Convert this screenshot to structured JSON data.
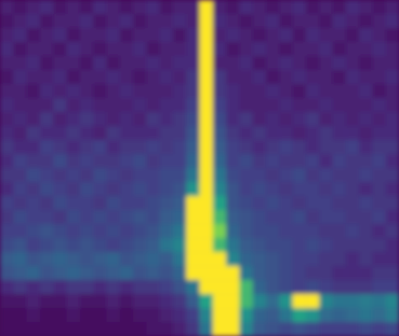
{
  "chart_data": {
    "type": "heatmap",
    "tick_labels": false,
    "zlim": [
      0,
      25
    ],
    "cells": [
      [
        3,
        2,
        3,
        4,
        2,
        3,
        2,
        4,
        3,
        2,
        3,
        4,
        2,
        3,
        3,
        25,
        3,
        2,
        4,
        3,
        2,
        3,
        4,
        2,
        3,
        2,
        4,
        3,
        2,
        3
      ],
      [
        2,
        3,
        4,
        2,
        3,
        3,
        4,
        2,
        3,
        4,
        2,
        3,
        3,
        4,
        3,
        25,
        4,
        3,
        2,
        3,
        4,
        2,
        3,
        3,
        2,
        4,
        3,
        2,
        3,
        4
      ],
      [
        3,
        4,
        2,
        3,
        4,
        2,
        3,
        3,
        4,
        2,
        3,
        3,
        4,
        2,
        4,
        25,
        3,
        4,
        3,
        2,
        3,
        4,
        2,
        4,
        3,
        3,
        2,
        4,
        3,
        2
      ],
      [
        4,
        2,
        3,
        3,
        2,
        4,
        3,
        2,
        3,
        3,
        4,
        2,
        3,
        3,
        4,
        25,
        4,
        2,
        3,
        4,
        3,
        2,
        3,
        3,
        4,
        2,
        3,
        3,
        4,
        3
      ],
      [
        3,
        3,
        4,
        2,
        3,
        3,
        2,
        4,
        2,
        3,
        3,
        4,
        3,
        4,
        4,
        25,
        3,
        3,
        4,
        2,
        3,
        4,
        3,
        2,
        3,
        4,
        3,
        2,
        3,
        3
      ],
      [
        2,
        4,
        3,
        3,
        4,
        2,
        3,
        3,
        4,
        3,
        2,
        3,
        4,
        3,
        5,
        25,
        5,
        3,
        3,
        4,
        2,
        3,
        4,
        3,
        3,
        2,
        4,
        3,
        3,
        4
      ],
      [
        3,
        3,
        2,
        4,
        3,
        4,
        3,
        2,
        3,
        4,
        3,
        3,
        3,
        4,
        5,
        25,
        5,
        4,
        3,
        3,
        4,
        3,
        2,
        4,
        3,
        3,
        3,
        4,
        2,
        3
      ],
      [
        4,
        3,
        3,
        3,
        5,
        3,
        4,
        3,
        3,
        3,
        4,
        3,
        4,
        4,
        6,
        25,
        6,
        4,
        3,
        3,
        3,
        4,
        3,
        3,
        4,
        3,
        3,
        3,
        4,
        3
      ],
      [
        3,
        4,
        3,
        5,
        3,
        4,
        5,
        4,
        3,
        4,
        3,
        5,
        4,
        5,
        7,
        25,
        7,
        4,
        5,
        3,
        4,
        3,
        4,
        5,
        3,
        4,
        3,
        4,
        3,
        4
      ],
      [
        4,
        3,
        5,
        4,
        4,
        5,
        4,
        3,
        5,
        4,
        4,
        4,
        5,
        5,
        8,
        25,
        8,
        5,
        4,
        5,
        4,
        4,
        3,
        4,
        5,
        4,
        4,
        3,
        4,
        4
      ],
      [
        5,
        4,
        4,
        6,
        5,
        4,
        5,
        6,
        4,
        5,
        5,
        6,
        5,
        6,
        9,
        25,
        9,
        6,
        5,
        4,
        5,
        6,
        5,
        4,
        5,
        5,
        6,
        4,
        5,
        5
      ],
      [
        4,
        6,
        5,
        5,
        7,
        5,
        6,
        5,
        5,
        6,
        7,
        5,
        6,
        6,
        10,
        25,
        10,
        6,
        7,
        5,
        6,
        5,
        5,
        6,
        4,
        6,
        5,
        5,
        6,
        4
      ],
      [
        5,
        5,
        7,
        6,
        5,
        6,
        5,
        7,
        6,
        5,
        6,
        6,
        7,
        7,
        12,
        25,
        12,
        7,
        6,
        6,
        5,
        6,
        7,
        5,
        6,
        5,
        5,
        6,
        5,
        5
      ],
      [
        4,
        6,
        5,
        7,
        6,
        5,
        7,
        6,
        5,
        6,
        7,
        6,
        7,
        8,
        16,
        25,
        14,
        8,
        6,
        7,
        6,
        5,
        6,
        6,
        5,
        6,
        5,
        4,
        5,
        4
      ],
      [
        6,
        5,
        6,
        5,
        7,
        6,
        6,
        5,
        7,
        6,
        6,
        7,
        8,
        9,
        25,
        25,
        18,
        8,
        7,
        6,
        7,
        6,
        5,
        6,
        6,
        5,
        5,
        6,
        5,
        5
      ],
      [
        5,
        7,
        6,
        6,
        5,
        7,
        6,
        7,
        6,
        7,
        8,
        7,
        9,
        10,
        25,
        25,
        20,
        9,
        8,
        7,
        6,
        6,
        7,
        5,
        6,
        6,
        5,
        5,
        6,
        4
      ],
      [
        6,
        6,
        7,
        8,
        7,
        6,
        7,
        6,
        7,
        6,
        7,
        8,
        10,
        12,
        25,
        25,
        22,
        10,
        8,
        7,
        7,
        6,
        6,
        6,
        5,
        5,
        6,
        5,
        4,
        5
      ],
      [
        7,
        8,
        6,
        7,
        8,
        7,
        8,
        7,
        6,
        7,
        8,
        9,
        12,
        14,
        25,
        25,
        20,
        12,
        9,
        8,
        7,
        7,
        6,
        7,
        6,
        5,
        5,
        5,
        5,
        4
      ],
      [
        9,
        10,
        8,
        9,
        10,
        9,
        8,
        9,
        10,
        8,
        9,
        10,
        9,
        12,
        25,
        25,
        25,
        14,
        10,
        9,
        8,
        7,
        6,
        6,
        5,
        5,
        4,
        5,
        4,
        4
      ],
      [
        8,
        9,
        10,
        8,
        9,
        10,
        9,
        8,
        9,
        10,
        8,
        9,
        8,
        10,
        25,
        25,
        25,
        25,
        12,
        9,
        8,
        7,
        6,
        5,
        5,
        4,
        4,
        4,
        5,
        5
      ],
      [
        4,
        5,
        4,
        5,
        4,
        5,
        5,
        4,
        5,
        4,
        5,
        5,
        6,
        8,
        12,
        25,
        25,
        25,
        20,
        10,
        8,
        7,
        6,
        7,
        6,
        5,
        5,
        5,
        6,
        6
      ],
      [
        2,
        2,
        3,
        2,
        2,
        3,
        2,
        2,
        3,
        2,
        3,
        3,
        4,
        5,
        9,
        18,
        25,
        25,
        20,
        14,
        11,
        16,
        25,
        25,
        14,
        12,
        12,
        13,
        12,
        14
      ],
      [
        1,
        1,
        2,
        1,
        1,
        2,
        1,
        1,
        2,
        1,
        2,
        2,
        3,
        4,
        6,
        14,
        25,
        25,
        16,
        10,
        9,
        12,
        18,
        16,
        11,
        10,
        11,
        12,
        11,
        13
      ],
      [
        1,
        1,
        1,
        1,
        1,
        1,
        1,
        1,
        1,
        1,
        1,
        2,
        2,
        3,
        5,
        12,
        25,
        25,
        14,
        9,
        8,
        7,
        8,
        7,
        6,
        6,
        6,
        7,
        6,
        7
      ]
    ]
  }
}
